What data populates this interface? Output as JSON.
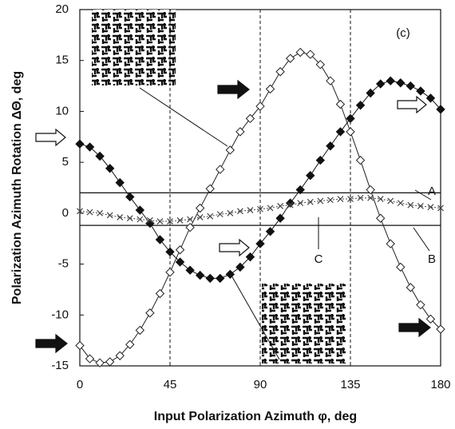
{
  "chart_data": {
    "type": "line",
    "x_label": "Input Polarization Azimuth φ, deg",
    "y_label": "Polarization Azimuth Rotation ΔΘ, deg",
    "xlim": [
      0,
      180
    ],
    "xticks": [
      0,
      45,
      90,
      135,
      180
    ],
    "ylim": [
      -15,
      20
    ],
    "yticks": [
      -15,
      -10,
      -5,
      0,
      5,
      10,
      15,
      20
    ],
    "x": [
      0,
      5,
      10,
      15,
      20,
      25,
      30,
      35,
      40,
      45,
      50,
      55,
      60,
      65,
      70,
      75,
      80,
      85,
      90,
      95,
      100,
      105,
      110,
      115,
      120,
      125,
      130,
      135,
      140,
      145,
      150,
      155,
      160,
      165,
      170,
      175,
      180
    ],
    "series": [
      {
        "marker": "open-diamond",
        "color": "#222222",
        "values": [
          -13,
          -14.3,
          -14.7,
          -14.6,
          -14,
          -12.9,
          -11.5,
          -9.8,
          -7.9,
          -5.8,
          -3.6,
          -1.4,
          0.5,
          2.4,
          4.3,
          6.2,
          8,
          9.3,
          10.5,
          12.2,
          13.9,
          15.2,
          15.8,
          15.6,
          14.6,
          13,
          10.7,
          8,
          5.2,
          2.3,
          -0.5,
          -3,
          -5.3,
          -7.3,
          -9,
          -10.4,
          -11.4
        ]
      },
      {
        "marker": "filled-diamond",
        "color": "#111111",
        "values": [
          6.8,
          6.5,
          5.6,
          4.4,
          3,
          1.6,
          0.3,
          -1,
          -2.6,
          -3.8,
          -4.8,
          -5.6,
          -6.1,
          -6.4,
          -6.4,
          -6,
          -5.3,
          -4.3,
          -3,
          -1.8,
          -0.5,
          1,
          2.3,
          3.7,
          5.2,
          6.6,
          8,
          9.3,
          10.6,
          11.8,
          12.7,
          13,
          12.8,
          12.5,
          12,
          11.3,
          10.2
        ]
      },
      {
        "marker": "cross",
        "color": "#444444",
        "values": [
          0.2,
          0.1,
          0,
          -0.2,
          -0.4,
          -0.5,
          -0.6,
          -0.7,
          -0.8,
          -0.8,
          -0.7,
          -0.6,
          -0.4,
          -0.3,
          -0.1,
          0,
          0.2,
          0.3,
          0.4,
          0.5,
          0.7,
          0.8,
          1,
          1.1,
          1.2,
          1.3,
          1.4,
          1.4,
          1.5,
          1.5,
          1.4,
          1.2,
          1,
          0.8,
          0.7,
          0.6,
          0.5
        ]
      }
    ],
    "hlines": [
      2,
      -1.2
    ],
    "vlines": [
      45,
      90,
      135
    ],
    "annotations": [
      "(c)",
      "A",
      "B",
      "C"
    ]
  }
}
